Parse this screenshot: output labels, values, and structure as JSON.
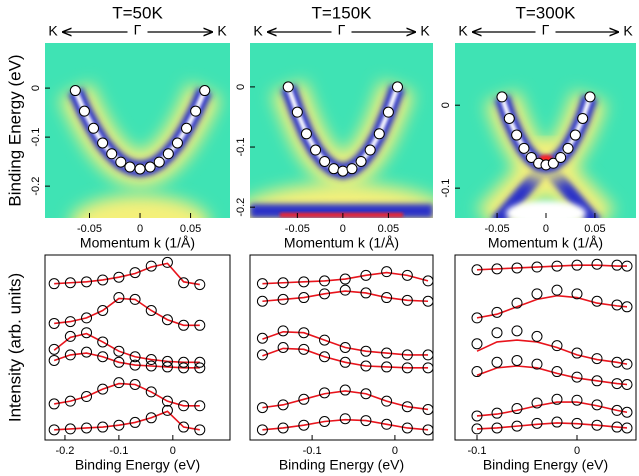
{
  "chart_data": [
    {
      "type": "heatmap",
      "title": "T=50K",
      "header": [
        "K",
        "Γ",
        "K"
      ],
      "xlabel": "Momentum k (1/Å)",
      "ylabel": "Binding Energy (eV)",
      "xlim": [
        -0.094,
        0.089
      ],
      "ylim": [
        -0.265,
        0.092
      ],
      "xticks": [
        -0.05,
        0,
        0.05
      ],
      "yticks": [
        0,
        -0.1,
        -0.2
      ],
      "x": [
        -0.064,
        -0.055,
        -0.046,
        -0.037,
        -0.028,
        -0.019,
        -0.01,
        0,
        0.01,
        0.019,
        0.028,
        0.037,
        0.046,
        0.055,
        0.064
      ],
      "y": [
        -0.005,
        -0.047,
        -0.082,
        -0.112,
        -0.134,
        -0.151,
        -0.161,
        -0.165,
        -0.161,
        -0.151,
        -0.134,
        -0.112,
        -0.082,
        -0.047,
        -0.005
      ]
    },
    {
      "type": "heatmap",
      "title": "T=150K",
      "header": [
        "K",
        "Γ",
        "K"
      ],
      "xlabel": "Momentum k (1/Å)",
      "xlim": [
        -0.102,
        0.099
      ],
      "ylim": [
        -0.218,
        0.073
      ],
      "xticks": [
        -0.05,
        0,
        0.05
      ],
      "yticks": [
        0,
        -0.1,
        -0.2
      ],
      "x": [
        -0.06,
        -0.05,
        -0.04,
        -0.03,
        -0.02,
        -0.01,
        0,
        0.01,
        0.02,
        0.03,
        0.04,
        0.05,
        0.06
      ],
      "y": [
        0.0,
        -0.042,
        -0.078,
        -0.105,
        -0.124,
        -0.136,
        -0.14,
        -0.136,
        -0.124,
        -0.105,
        -0.078,
        -0.042,
        0.0
      ]
    },
    {
      "type": "heatmap",
      "title": "T=300K",
      "header": [
        "K",
        "Γ",
        "K"
      ],
      "xlabel": "Momentum k (1/Å)",
      "xlim": [
        -0.093,
        0.092
      ],
      "ylim": [
        -0.136,
        0.075
      ],
      "xticks": [
        -0.05,
        0,
        0.05
      ],
      "yticks": [
        0,
        -0.1
      ],
      "x": [
        -0.045,
        -0.0375,
        -0.03,
        -0.0225,
        -0.015,
        -0.0075,
        0,
        0.0075,
        0.015,
        0.0225,
        0.03,
        0.0375,
        0.045
      ],
      "y": [
        0.01,
        -0.016,
        -0.036,
        -0.052,
        -0.063,
        -0.07,
        -0.072,
        -0.07,
        -0.063,
        -0.052,
        -0.036,
        -0.016,
        0.01
      ]
    },
    {
      "type": "line",
      "xlabel": "Binding Energy (eV)",
      "ylabel": "Intensity (arb. units)",
      "xlim": [
        -0.237,
        0.106
      ],
      "ylim": [
        0,
        10
      ],
      "xticks": [
        -0.2,
        -0.1,
        0
      ],
      "x": [
        -0.22,
        -0.19,
        -0.16,
        -0.13,
        -0.1,
        -0.07,
        -0.04,
        -0.01,
        0.02,
        0.05
      ],
      "series": [
        {
          "color": "#000000",
          "values": [
            8.45,
            8.5,
            8.55,
            8.65,
            8.8,
            9.05,
            9.4,
            9.6,
            8.5,
            8.4
          ]
        },
        {
          "color": "#000000",
          "values": [
            6.3,
            6.4,
            6.6,
            7.0,
            7.7,
            7.6,
            7.0,
            6.5,
            6.2,
            6.2
          ]
        },
        {
          "color": "#000000",
          "values": [
            4.9,
            5.6,
            5.8,
            5.3,
            4.8,
            4.5,
            4.35,
            4.25,
            4.2,
            4.2
          ]
        },
        {
          "color": "#000000",
          "values": [
            4.3,
            4.6,
            4.75,
            4.5,
            4.2,
            4.05,
            4.0,
            3.95,
            3.9,
            3.9
          ]
        },
        {
          "color": "#000000",
          "values": [
            1.95,
            2.1,
            2.35,
            2.75,
            3.1,
            3.0,
            2.6,
            2.1,
            1.85,
            1.85
          ]
        },
        {
          "color": "#000000",
          "values": [
            0.55,
            0.6,
            0.65,
            0.7,
            0.8,
            0.95,
            1.2,
            1.6,
            0.7,
            0.55
          ]
        }
      ],
      "fits": [
        {
          "color": "#e8141c",
          "values": [
            8.45,
            8.5,
            8.55,
            8.65,
            8.8,
            9.0,
            9.35,
            9.55,
            8.55,
            8.4
          ]
        },
        {
          "color": "#e8141c",
          "values": [
            6.3,
            6.4,
            6.6,
            7.0,
            7.65,
            7.6,
            7.0,
            6.5,
            6.2,
            6.2
          ]
        },
        {
          "color": "#e8141c",
          "values": [
            4.85,
            5.55,
            5.75,
            5.3,
            4.8,
            4.5,
            4.35,
            4.25,
            4.2,
            4.2
          ]
        },
        {
          "color": "#e8141c",
          "values": [
            4.3,
            4.6,
            4.7,
            4.5,
            4.2,
            4.05,
            4.0,
            3.95,
            3.9,
            3.9
          ]
        },
        {
          "color": "#e8141c",
          "values": [
            1.95,
            2.1,
            2.35,
            2.75,
            3.05,
            3.0,
            2.6,
            2.1,
            1.85,
            1.85
          ]
        },
        {
          "color": "#e8141c",
          "values": [
            0.55,
            0.6,
            0.65,
            0.7,
            0.8,
            0.95,
            1.2,
            1.55,
            0.7,
            0.55
          ]
        }
      ]
    },
    {
      "type": "line",
      "xlabel": "Binding Energy (eV)",
      "xlim": [
        -0.175,
        0.046
      ],
      "ylim": [
        0,
        10
      ],
      "xticks": [
        -0.1,
        0
      ],
      "x": [
        -0.16,
        -0.135,
        -0.11,
        -0.085,
        -0.06,
        -0.035,
        -0.01,
        0.015,
        0.04
      ],
      "series": [
        {
          "color": "#000000",
          "values": [
            8.45,
            8.5,
            8.55,
            8.6,
            8.7,
            8.9,
            9.1,
            8.9,
            8.6
          ]
        },
        {
          "color": "#000000",
          "values": [
            7.5,
            7.6,
            7.7,
            7.9,
            8.1,
            7.95,
            7.7,
            7.55,
            7.5
          ]
        },
        {
          "color": "#000000",
          "values": [
            5.5,
            5.9,
            5.8,
            5.4,
            5.0,
            4.8,
            4.7,
            4.6,
            4.6
          ]
        },
        {
          "color": "#000000",
          "values": [
            4.6,
            5.0,
            4.9,
            4.5,
            4.2,
            4.0,
            3.95,
            3.9,
            3.9
          ]
        },
        {
          "color": "#000000",
          "values": [
            1.75,
            1.9,
            2.2,
            2.55,
            2.7,
            2.5,
            2.1,
            1.8,
            1.65
          ]
        },
        {
          "color": "#000000",
          "values": [
            0.55,
            0.65,
            0.8,
            1.0,
            1.15,
            1.05,
            0.85,
            0.65,
            0.55
          ]
        }
      ],
      "fits": [
        {
          "color": "#e8141c",
          "values": [
            8.45,
            8.5,
            8.55,
            8.6,
            8.7,
            8.9,
            9.05,
            8.9,
            8.6
          ]
        },
        {
          "color": "#e8141c",
          "values": [
            7.5,
            7.6,
            7.7,
            7.9,
            8.05,
            7.95,
            7.7,
            7.55,
            7.5
          ]
        },
        {
          "color": "#e8141c",
          "values": [
            5.45,
            5.85,
            5.8,
            5.4,
            5.0,
            4.8,
            4.7,
            4.6,
            4.6
          ]
        },
        {
          "color": "#e8141c",
          "values": [
            4.55,
            4.95,
            4.9,
            4.5,
            4.2,
            4.0,
            3.95,
            3.9,
            3.9
          ]
        },
        {
          "color": "#e8141c",
          "values": [
            1.75,
            1.9,
            2.2,
            2.5,
            2.65,
            2.5,
            2.1,
            1.8,
            1.65
          ]
        },
        {
          "color": "#e8141c",
          "values": [
            0.55,
            0.65,
            0.8,
            1.0,
            1.1,
            1.05,
            0.85,
            0.65,
            0.55
          ]
        }
      ]
    },
    {
      "type": "line",
      "xlabel": "Binding Energy (eV)",
      "xlim": [
        -0.122,
        0.059
      ],
      "ylim": [
        0,
        10
      ],
      "xticks": [
        -0.1,
        0
      ],
      "x": [
        -0.1,
        -0.08,
        -0.06,
        -0.04,
        -0.02,
        0,
        0.02,
        0.04,
        0.05
      ],
      "series": [
        {
          "color": "#000000",
          "values": [
            9.2,
            9.25,
            9.3,
            9.35,
            9.4,
            9.45,
            9.5,
            9.45,
            9.4
          ]
        },
        {
          "color": "#000000",
          "values": [
            6.6,
            6.9,
            7.4,
            7.9,
            8.1,
            7.9,
            7.5,
            7.3,
            7.2
          ]
        },
        {
          "color": "#000000",
          "values": [
            5.2,
            5.8,
            5.9,
            5.6,
            5.1,
            4.7,
            4.4,
            4.2,
            4.1
          ]
        },
        {
          "color": "#000000",
          "values": [
            3.7,
            4.2,
            4.3,
            4.1,
            3.7,
            3.4,
            3.2,
            3.05,
            3.0
          ]
        },
        {
          "color": "#000000",
          "values": [
            1.3,
            1.45,
            1.7,
            2.0,
            2.2,
            2.15,
            1.9,
            1.6,
            1.5
          ]
        },
        {
          "color": "#000000",
          "values": [
            0.6,
            0.65,
            0.75,
            0.9,
            0.97,
            0.9,
            0.8,
            0.7,
            0.65
          ]
        }
      ],
      "fits": [
        {
          "color": "#e8141c",
          "values": [
            9.2,
            9.25,
            9.3,
            9.35,
            9.4,
            9.45,
            9.45,
            9.4,
            9.4
          ]
        },
        {
          "color": "#e8141c",
          "values": [
            6.6,
            6.8,
            7.2,
            7.6,
            7.8,
            7.7,
            7.4,
            7.25,
            7.2
          ]
        },
        {
          "color": "#e8141c",
          "values": [
            4.8,
            5.3,
            5.4,
            5.3,
            5.0,
            4.6,
            4.35,
            4.2,
            4.1
          ]
        },
        {
          "color": "#e8141c",
          "values": [
            3.5,
            3.9,
            4.0,
            3.9,
            3.6,
            3.35,
            3.2,
            3.05,
            3.0
          ]
        },
        {
          "color": "#e8141c",
          "values": [
            1.3,
            1.4,
            1.6,
            1.85,
            2.05,
            2.05,
            1.85,
            1.6,
            1.5
          ]
        },
        {
          "color": "#e8141c",
          "values": [
            0.6,
            0.65,
            0.75,
            0.85,
            0.92,
            0.88,
            0.8,
            0.7,
            0.65
          ]
        }
      ]
    }
  ]
}
